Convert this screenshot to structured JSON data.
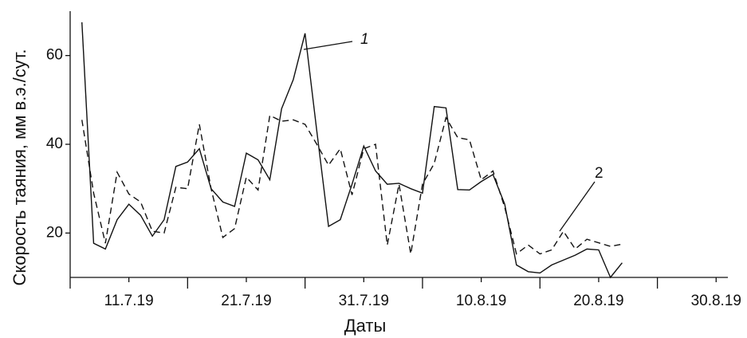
{
  "chart_data": {
    "type": "line",
    "x_label": "Даты",
    "y_label": "Скорость таяния, мм в.э./сут.",
    "xlim": [
      6,
      62
    ],
    "ylim": [
      10,
      70
    ],
    "xticks": [
      {
        "value": 11,
        "label": "11.7.19"
      },
      {
        "value": 21,
        "label": "21.7.19"
      },
      {
        "value": 31,
        "label": "31.7.19"
      },
      {
        "value": 41,
        "label": "10.8.19"
      },
      {
        "value": 51,
        "label": "20.8.19"
      },
      {
        "value": 61,
        "label": "30.8.19"
      }
    ],
    "xminorticks": [
      6,
      16,
      26,
      36,
      46,
      56
    ],
    "yticks": [
      20,
      40,
      60
    ],
    "x": [
      7,
      8,
      9,
      10,
      11,
      12,
      13,
      14,
      15,
      16,
      17,
      18,
      19,
      20,
      21,
      22,
      23,
      24,
      25,
      26,
      27,
      28,
      29,
      30,
      31,
      32,
      33,
      34,
      35,
      36,
      37,
      38,
      39,
      40,
      41,
      42,
      43,
      44,
      45,
      46,
      47,
      48,
      49,
      50,
      51,
      52,
      53
    ],
    "series": [
      {
        "name": "1",
        "color": "#111111",
        "dash": false,
        "values": [
          67.5,
          17.7,
          16.4,
          23,
          26.5,
          24,
          19.3,
          23,
          35,
          36,
          39,
          30,
          27,
          26,
          38,
          36.5,
          32,
          48,
          54.6,
          65,
          43,
          21.5,
          23,
          31,
          39.6,
          34,
          31,
          31.2,
          30,
          29,
          48.5,
          48.2,
          29.8,
          29.7,
          31.6,
          33.2,
          26.5,
          12.8,
          11.3,
          11,
          12.8,
          13.9,
          15,
          16.4,
          16.2,
          10,
          13.3
        ]
      },
      {
        "name": "2",
        "color": "#111111",
        "dash": true,
        "values": [
          45.5,
          29,
          17.7,
          33.7,
          28.8,
          27,
          20.4,
          20,
          30.3,
          30,
          44.5,
          30,
          19,
          21,
          32.6,
          29.7,
          46.5,
          45.2,
          45.5,
          44.5,
          40,
          35.3,
          39,
          28.6,
          39,
          40,
          17.3,
          31,
          15.3,
          31,
          35.7,
          46,
          41.5,
          41,
          32,
          34,
          25.8,
          15.3,
          17.3,
          15.3,
          16.2,
          20.4,
          16.4,
          18.6,
          17.8,
          17,
          17.5
        ]
      }
    ]
  }
}
